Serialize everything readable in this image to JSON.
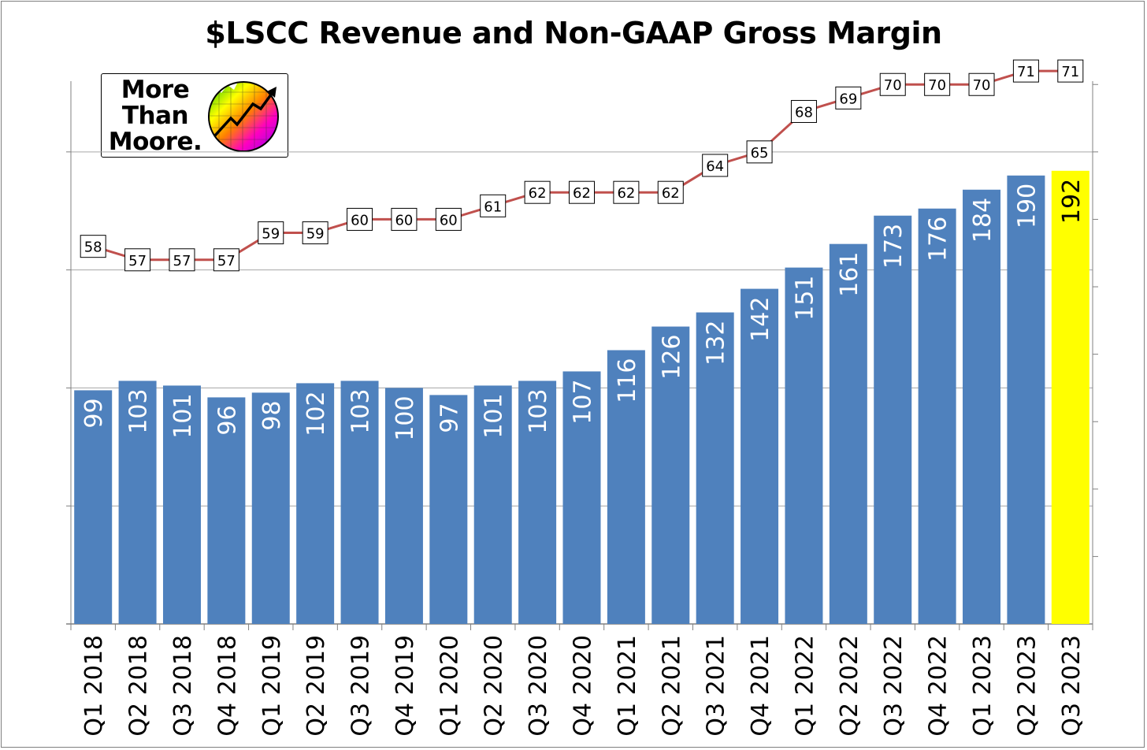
{
  "title": "$LSCC Revenue and Non-GAAP Gross Margin",
  "logo": {
    "text": "More\nThan\nMoore.",
    "icon": "rising-chart-chip-icon"
  },
  "colors": {
    "bar": "#4f81bd",
    "highlight_bar": "#ffff00",
    "line": "#c0504d",
    "grid": "#a6a6a6"
  },
  "chart_data": {
    "type": "bar",
    "categories": [
      "Q1 2018",
      "Q2 2018",
      "Q3 2018",
      "Q4 2018",
      "Q1 2019",
      "Q2 2019",
      "Q3 2019",
      "Q4 2019",
      "Q1 2020",
      "Q2 2020",
      "Q3 2020",
      "Q4 2020",
      "Q1 2021",
      "Q2 2021",
      "Q3 2021",
      "Q4 2021",
      "Q1 2022",
      "Q2 2022",
      "Q3 2022",
      "Q4 2022",
      "Q1 2023",
      "Q2 2023",
      "Q3 2023"
    ],
    "series": [
      {
        "type": "bar",
        "axis": "left",
        "values": [
          99,
          103,
          101,
          96,
          98,
          102,
          103,
          100,
          97,
          101,
          103,
          107,
          116,
          126,
          132,
          142,
          151,
          161,
          173,
          176,
          184,
          190,
          192
        ],
        "highlight_index": 22
      },
      {
        "type": "line",
        "axis": "right",
        "values": [
          58,
          57,
          57,
          57,
          59,
          59,
          60,
          60,
          60,
          61,
          62,
          62,
          62,
          62,
          64,
          65,
          68,
          69,
          70,
          70,
          70,
          71,
          71
        ]
      }
    ],
    "y_left_lim": [
      0,
      240
    ],
    "y_right_lim": [
      30,
      72
    ],
    "grid": true,
    "tick_labels_hidden": true
  }
}
